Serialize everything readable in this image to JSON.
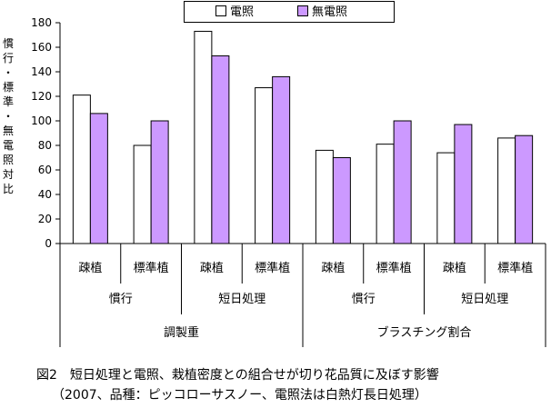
{
  "chart_data": {
    "type": "bar",
    "y_axis_label": "慣行・標準・無電照対比",
    "ylim": [
      0,
      180
    ],
    "yticks": [
      0,
      20,
      40,
      60,
      80,
      100,
      120,
      140,
      160,
      180
    ],
    "grid": false,
    "legend_position": "top-center",
    "categories": [
      "疎植",
      "標準植",
      "疎植",
      "標準植",
      "疎植",
      "標準植",
      "疎植",
      "標準植"
    ],
    "group_level2": [
      "慣行",
      "短日処理",
      "慣行",
      "短日処理"
    ],
    "group_level3": [
      "調製重",
      "ブラスチング割合"
    ],
    "series": [
      {
        "name": "電照",
        "color": "#ffffff",
        "values": [
          121,
          80,
          173,
          127,
          76,
          81,
          74,
          86
        ]
      },
      {
        "name": "無電照",
        "color": "#cc99ff",
        "values": [
          106,
          100,
          153,
          136,
          70,
          100,
          97,
          88
        ]
      }
    ]
  },
  "caption": {
    "title": "図2　短日処理と電照、栽植密度との組合せが切り花品質に及ぼす影響",
    "note": "（2007、品種：ピッコローサスノー、電照法は白熱灯長日処理）"
  }
}
